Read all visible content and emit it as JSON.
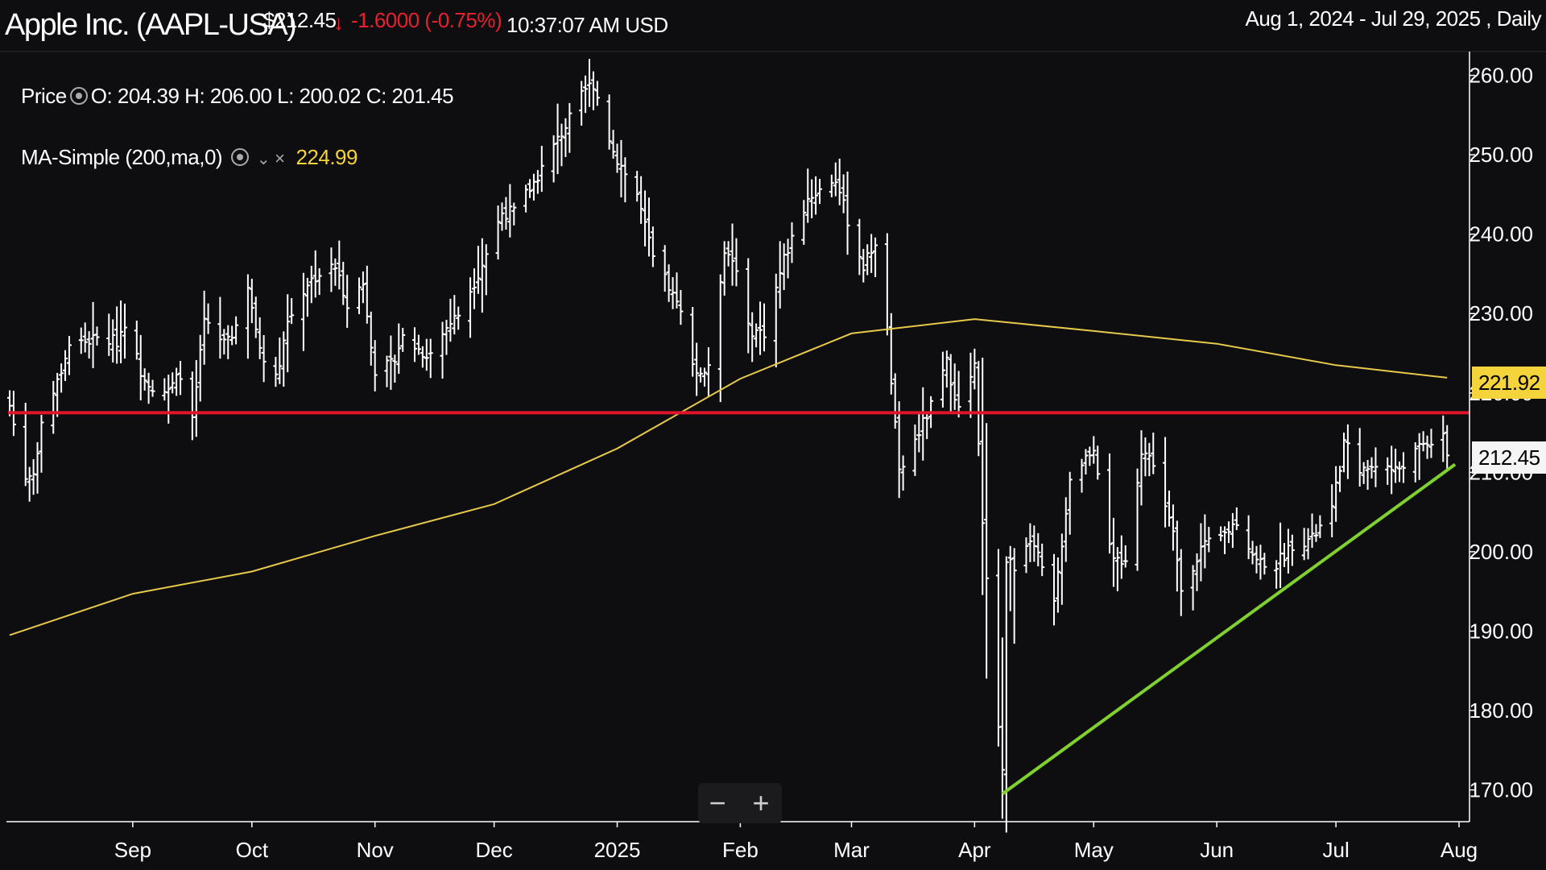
{
  "header": {
    "title": "Apple Inc. (AAPL-USA)",
    "price": "$212.45",
    "change": "-1.6000 (-0.75%)",
    "time": "10:37:07 AM USD",
    "range": "Aug 1, 2024 - Jul 29, 2025 , Daily"
  },
  "legend": {
    "price_label": "Price",
    "ohlc": "O: 204.39 H: 206.00 L: 200.02 C: 201.45",
    "ma_label": "MA-Simple (200,ma,0)",
    "ma_value": "224.99"
  },
  "labels": {
    "last_price": "212.45",
    "ma_last": "221.92"
  },
  "zoom": {
    "out": "−",
    "in": "+"
  },
  "colors": {
    "background": "#0e0e10",
    "bars": "#ffffff",
    "ma_line": "#e6c84a",
    "support_line": "#e0152b",
    "trend_line": "#7fd12f",
    "down": "#e8202f"
  },
  "chart_data": {
    "type": "ohlc",
    "interval": "Daily",
    "start": "2024-08-01",
    "end": "2025-07-29",
    "y_axis": {
      "min": 166,
      "max": 263,
      "ticks": [
        170,
        180,
        190,
        200,
        210,
        220,
        230,
        240,
        250,
        260
      ],
      "tick_format": "0.00",
      "side": "right"
    },
    "x_axis": {
      "ticks": [
        {
          "label": "Sep",
          "date": "2024-09-01"
        },
        {
          "label": "Oct",
          "date": "2024-10-01"
        },
        {
          "label": "Nov",
          "date": "2024-11-01"
        },
        {
          "label": "Dec",
          "date": "2024-12-01"
        },
        {
          "label": "2025",
          "date": "2025-01-01"
        },
        {
          "label": "Feb",
          "date": "2025-02-01"
        },
        {
          "label": "Mar",
          "date": "2025-03-01"
        },
        {
          "label": "Apr",
          "date": "2025-04-01"
        },
        {
          "label": "May",
          "date": "2025-05-01"
        },
        {
          "label": "Jun",
          "date": "2025-06-01"
        },
        {
          "label": "Jul",
          "date": "2025-07-01"
        },
        {
          "label": "Aug",
          "date": "2025-08-01"
        }
      ]
    },
    "price_anchors": [
      {
        "date": "2024-08-01",
        "close": 218.4
      },
      {
        "date": "2024-08-05",
        "close": 209.3
      },
      {
        "date": "2024-08-07",
        "close": 209.8
      },
      {
        "date": "2024-08-09",
        "close": 216.2
      },
      {
        "date": "2024-08-13",
        "close": 221.3
      },
      {
        "date": "2024-08-16",
        "close": 226.1
      },
      {
        "date": "2024-08-20",
        "close": 226.5
      },
      {
        "date": "2024-08-23",
        "close": 226.8
      },
      {
        "date": "2024-08-28",
        "close": 226.5
      },
      {
        "date": "2024-08-30",
        "close": 229.0
      },
      {
        "date": "2024-09-03",
        "close": 222.8
      },
      {
        "date": "2024-09-06",
        "close": 220.8
      },
      {
        "date": "2024-09-10",
        "close": 220.1
      },
      {
        "date": "2024-09-13",
        "close": 222.5
      },
      {
        "date": "2024-09-16",
        "close": 216.3
      },
      {
        "date": "2024-09-19",
        "close": 228.9
      },
      {
        "date": "2024-09-23",
        "close": 226.5
      },
      {
        "date": "2024-09-27",
        "close": 227.8
      },
      {
        "date": "2024-09-30",
        "close": 233.0
      },
      {
        "date": "2024-10-03",
        "close": 225.7
      },
      {
        "date": "2024-10-07",
        "close": 221.7
      },
      {
        "date": "2024-10-10",
        "close": 229.0
      },
      {
        "date": "2024-10-15",
        "close": 233.9
      },
      {
        "date": "2024-10-18",
        "close": 235.0
      },
      {
        "date": "2024-10-22",
        "close": 235.9
      },
      {
        "date": "2024-10-25",
        "close": 231.4
      },
      {
        "date": "2024-10-29",
        "close": 233.7
      },
      {
        "date": "2024-11-01",
        "close": 222.9
      },
      {
        "date": "2024-11-05",
        "close": 223.5
      },
      {
        "date": "2024-11-08",
        "close": 227.0
      },
      {
        "date": "2024-11-13",
        "close": 225.1
      },
      {
        "date": "2024-11-15",
        "close": 225.0
      },
      {
        "date": "2024-11-19",
        "close": 228.3
      },
      {
        "date": "2024-11-22",
        "close": 229.9
      },
      {
        "date": "2024-11-27",
        "close": 235.1
      },
      {
        "date": "2024-12-03",
        "close": 242.7
      },
      {
        "date": "2024-12-06",
        "close": 242.8
      },
      {
        "date": "2024-12-11",
        "close": 246.5
      },
      {
        "date": "2024-12-16",
        "close": 251.0
      },
      {
        "date": "2024-12-20",
        "close": 254.5
      },
      {
        "date": "2024-12-24",
        "close": 258.2
      },
      {
        "date": "2024-12-26",
        "close": 259.0
      },
      {
        "date": "2024-12-31",
        "close": 250.4
      },
      {
        "date": "2025-01-06",
        "close": 245.0
      },
      {
        "date": "2025-01-10",
        "close": 236.9
      },
      {
        "date": "2025-01-14",
        "close": 233.3
      },
      {
        "date": "2025-01-17",
        "close": 229.9
      },
      {
        "date": "2025-01-21",
        "close": 222.6
      },
      {
        "date": "2025-01-24",
        "close": 222.8
      },
      {
        "date": "2025-01-28",
        "close": 238.3
      },
      {
        "date": "2025-01-31",
        "close": 236.0
      },
      {
        "date": "2025-02-03",
        "close": 228.0
      },
      {
        "date": "2025-02-07",
        "close": 227.6
      },
      {
        "date": "2025-02-12",
        "close": 236.9
      },
      {
        "date": "2025-02-18",
        "close": 244.5
      },
      {
        "date": "2025-02-21",
        "close": 245.6
      },
      {
        "date": "2025-02-25",
        "close": 247.0
      },
      {
        "date": "2025-02-28",
        "close": 241.8
      },
      {
        "date": "2025-03-04",
        "close": 235.9
      },
      {
        "date": "2025-03-07",
        "close": 239.1
      },
      {
        "date": "2025-03-10",
        "close": 227.5
      },
      {
        "date": "2025-03-13",
        "close": 209.7
      },
      {
        "date": "2025-03-17",
        "close": 214.0
      },
      {
        "date": "2025-03-21",
        "close": 218.3
      },
      {
        "date": "2025-03-25",
        "close": 223.8
      },
      {
        "date": "2025-03-28",
        "close": 217.9
      },
      {
        "date": "2025-04-01",
        "close": 223.2
      },
      {
        "date": "2025-04-03",
        "close": 203.2
      },
      {
        "date": "2025-04-08",
        "close": 172.4
      },
      {
        "date": "2025-04-09",
        "close": 198.9
      },
      {
        "date": "2025-04-11",
        "close": 198.2
      },
      {
        "date": "2025-04-15",
        "close": 202.1
      },
      {
        "date": "2025-04-21",
        "close": 193.2
      },
      {
        "date": "2025-04-25",
        "close": 209.3
      },
      {
        "date": "2025-05-01",
        "close": 213.3
      },
      {
        "date": "2025-05-06",
        "close": 198.5
      },
      {
        "date": "2025-05-09",
        "close": 198.5
      },
      {
        "date": "2025-05-13",
        "close": 212.9
      },
      {
        "date": "2025-05-16",
        "close": 211.3
      },
      {
        "date": "2025-05-21",
        "close": 202.1
      },
      {
        "date": "2025-05-23",
        "close": 195.3
      },
      {
        "date": "2025-05-28",
        "close": 200.4
      },
      {
        "date": "2025-06-02",
        "close": 201.7
      },
      {
        "date": "2025-06-06",
        "close": 203.9
      },
      {
        "date": "2025-06-11",
        "close": 198.8
      },
      {
        "date": "2025-06-16",
        "close": 198.4
      },
      {
        "date": "2025-06-20",
        "close": 201.0
      },
      {
        "date": "2025-06-25",
        "close": 201.6
      },
      {
        "date": "2025-06-30",
        "close": 205.2
      },
      {
        "date": "2025-07-03",
        "close": 213.6
      },
      {
        "date": "2025-07-08",
        "close": 210.0
      },
      {
        "date": "2025-07-11",
        "close": 211.2
      },
      {
        "date": "2025-07-16",
        "close": 210.2
      },
      {
        "date": "2025-07-21",
        "close": 212.5
      },
      {
        "date": "2025-07-24",
        "close": 213.8
      },
      {
        "date": "2025-07-28",
        "close": 214.1
      },
      {
        "date": "2025-07-29",
        "close": 212.45
      }
    ],
    "ma_200": [
      {
        "date": "2024-08-01",
        "value": 189.5
      },
      {
        "date": "2024-09-01",
        "value": 194.7
      },
      {
        "date": "2024-10-01",
        "value": 197.5
      },
      {
        "date": "2024-11-01",
        "value": 202.0
      },
      {
        "date": "2024-12-01",
        "value": 206.0
      },
      {
        "date": "2025-01-01",
        "value": 213.0
      },
      {
        "date": "2025-02-01",
        "value": 221.8
      },
      {
        "date": "2025-03-01",
        "value": 227.5
      },
      {
        "date": "2025-04-01",
        "value": 229.3
      },
      {
        "date": "2025-05-01",
        "value": 227.8
      },
      {
        "date": "2025-06-01",
        "value": 226.2
      },
      {
        "date": "2025-07-01",
        "value": 223.5
      },
      {
        "date": "2025-07-29",
        "value": 221.92
      }
    ],
    "support_level": 217.5,
    "trendline": {
      "from": {
        "date": "2025-04-08",
        "value": 169.5
      },
      "to": {
        "date": "2025-07-31",
        "value": 211.0
      }
    }
  }
}
